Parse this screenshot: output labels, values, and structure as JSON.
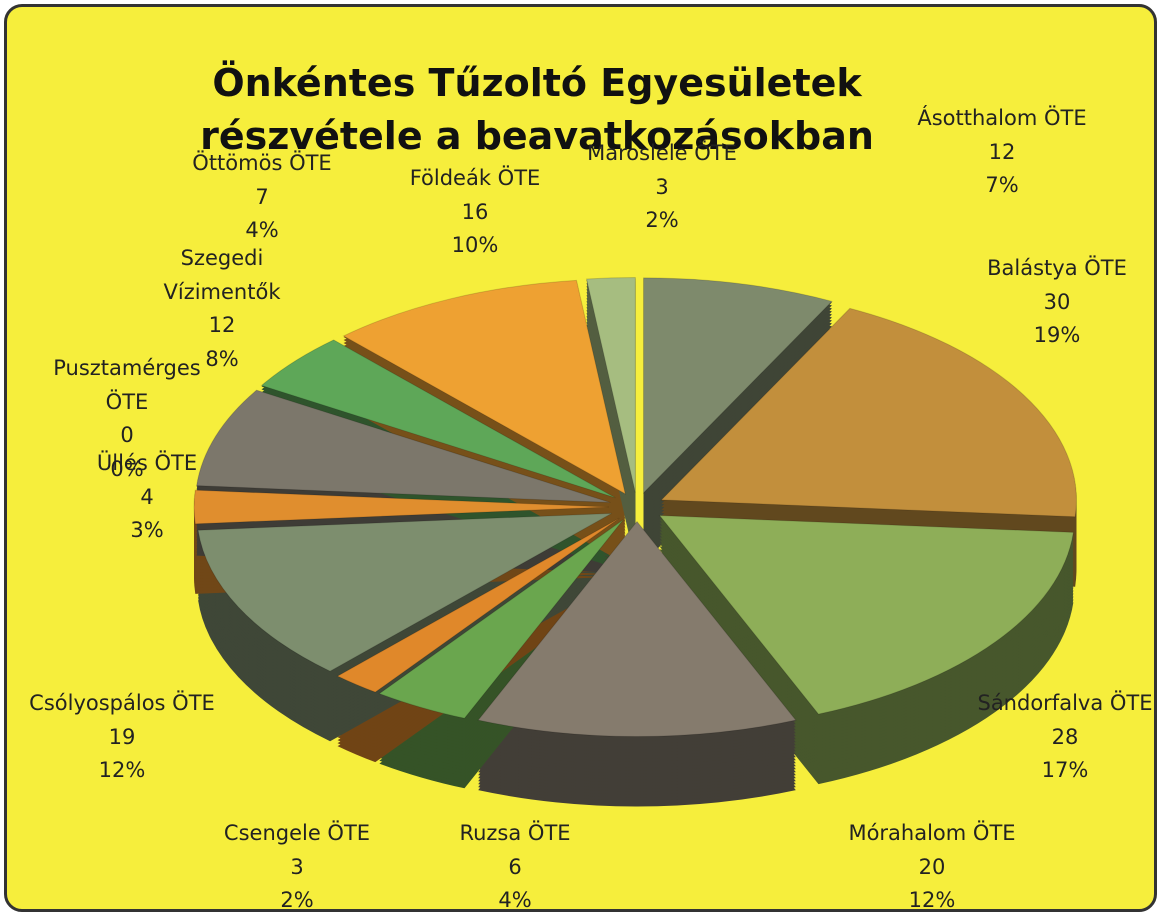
{
  "chart_data": {
    "type": "pie",
    "title": "Önkéntes Tűzoltó Egyesületek részvétele a beavatkozásokban",
    "categories": [
      "Ásotthalom ÖTE",
      "Balástya ÖTE",
      "Sándorfalva ÖTE",
      "Mórahalom ÖTE",
      "Ruzsa ÖTE",
      "Csengele ÖTE",
      "Csólyospálos ÖTE",
      "Üllés ÖTE",
      "Pusztamérges ÖTE",
      "Szegedi Vízimentők",
      "Öttömös ÖTE",
      "Földeák ÖTE",
      "Maroslele ÖTE"
    ],
    "values": [
      12,
      30,
      28,
      20,
      6,
      3,
      19,
      4,
      0,
      12,
      7,
      16,
      3
    ],
    "percents": [
      7,
      19,
      17,
      12,
      4,
      2,
      12,
      3,
      0,
      8,
      4,
      10,
      2
    ],
    "percent_labels": [
      "7%",
      "19%",
      "17%",
      "12%",
      "4%",
      "2%",
      "12%",
      "3%",
      "0%",
      "8%",
      "4%",
      "10%",
      "2%"
    ],
    "colors": [
      "#7e8a6c",
      "#c28f3c",
      "#8eae58",
      "#857b6d",
      "#6aa64e",
      "#e0882a",
      "#7d8e6e",
      "#e08e2e",
      "#a0a070",
      "#7c776b",
      "#5ea758",
      "#eea132",
      "#a6bd80"
    ]
  }
}
